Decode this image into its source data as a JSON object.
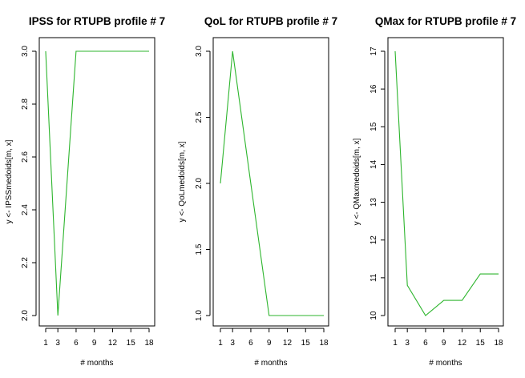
{
  "chart_data": [
    {
      "type": "line",
      "title": "IPSS for RTUPB profile # 7",
      "xlabel": "# months",
      "ylabel": "y <- IPSSmedoids[m, x]",
      "x": [
        1,
        3,
        6,
        9,
        12,
        15,
        18
      ],
      "series": [
        {
          "values": [
            3.0,
            2.0,
            3.0,
            3.0,
            3.0,
            3.0,
            3.0
          ],
          "color": "#2db52d"
        }
      ],
      "xlim": [
        1,
        18
      ],
      "ylim": [
        2.0,
        3.0
      ],
      "xticks": [
        1,
        3,
        6,
        9,
        12,
        15,
        18
      ],
      "yticks": [
        2.0,
        2.2,
        2.4,
        2.6,
        2.8,
        3.0
      ],
      "ytick_labels": [
        "2.0",
        "2.2",
        "2.4",
        "2.6",
        "2.8",
        "3.0"
      ],
      "grid": false
    },
    {
      "type": "line",
      "title": "QoL for RTUPB profile # 7",
      "xlabel": "# months",
      "ylabel": "y <- QoLmedoids[m, x]",
      "x": [
        1,
        3,
        6,
        9,
        12,
        15,
        18
      ],
      "series": [
        {
          "values": [
            2.0,
            3.0,
            2.0,
            1.0,
            1.0,
            1.0,
            1.0
          ],
          "color": "#2db52d"
        }
      ],
      "xlim": [
        1,
        18
      ],
      "ylim": [
        1.0,
        3.0
      ],
      "xticks": [
        1,
        3,
        6,
        9,
        12,
        15,
        18
      ],
      "yticks": [
        1.0,
        1.5,
        2.0,
        2.5,
        3.0
      ],
      "ytick_labels": [
        "1.0",
        "1.5",
        "2.0",
        "2.5",
        "3.0"
      ],
      "grid": false
    },
    {
      "type": "line",
      "title": "QMax for RTUPB profile # 7",
      "xlabel": "# months",
      "ylabel": "y <- QMaxmedoids[m, x]",
      "x": [
        1,
        3,
        6,
        9,
        12,
        15,
        18
      ],
      "series": [
        {
          "values": [
            17.0,
            10.8,
            10.0,
            10.4,
            10.4,
            11.1,
            11.1
          ],
          "color": "#2db52d"
        }
      ],
      "xlim": [
        1,
        18
      ],
      "ylim": [
        10,
        17
      ],
      "xticks": [
        1,
        3,
        6,
        9,
        12,
        15,
        18
      ],
      "yticks": [
        10,
        11,
        12,
        13,
        14,
        15,
        16,
        17
      ],
      "ytick_labels": [
        "10",
        "11",
        "12",
        "13",
        "14",
        "15",
        "16",
        "17"
      ],
      "grid": false
    }
  ]
}
